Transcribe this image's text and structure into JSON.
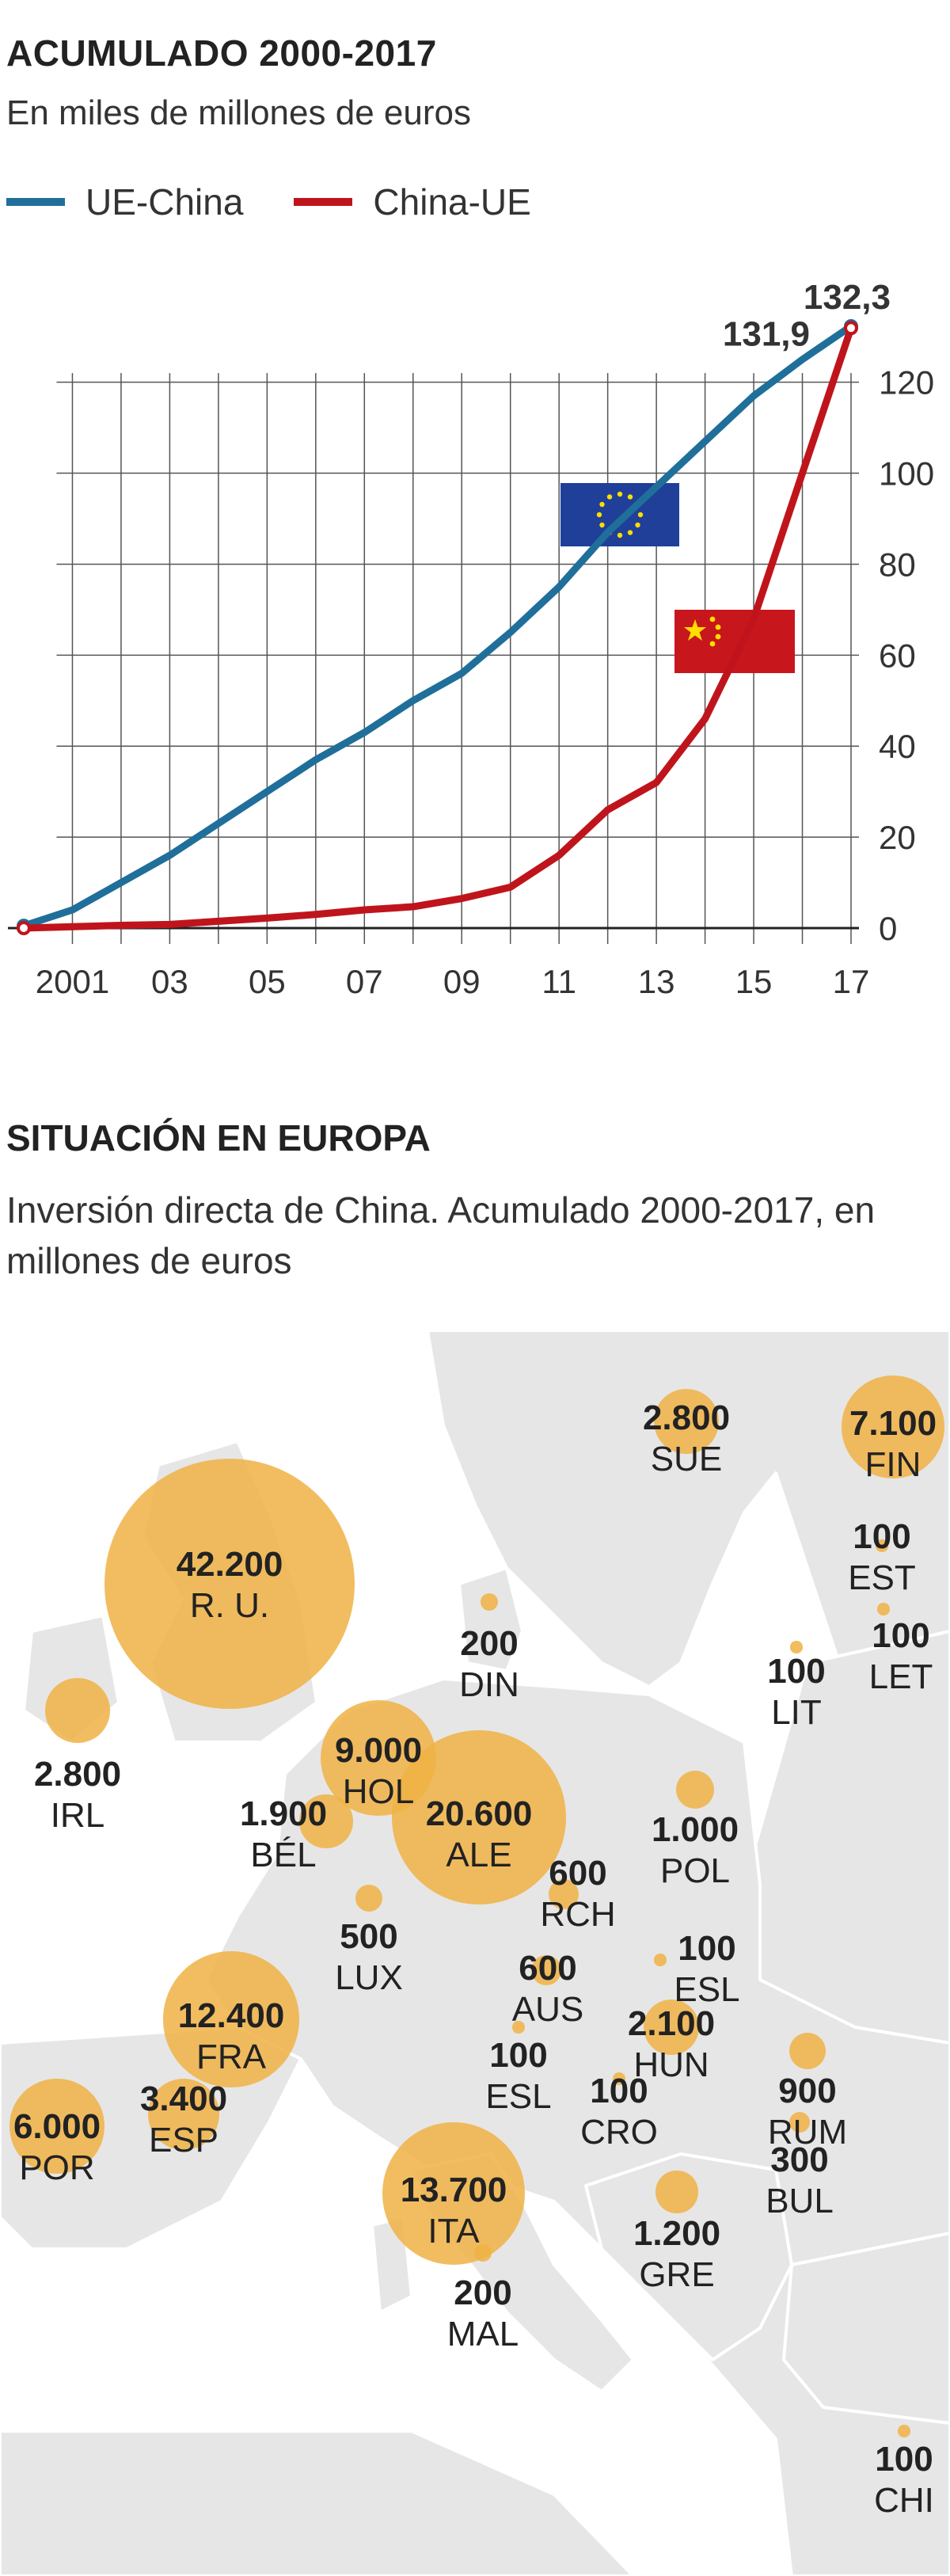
{
  "section1": {
    "title": "ACUMULADO 2000-2017",
    "subtitle": "En miles de millones de euros"
  },
  "colors": {
    "eu_china": "#1f6f9a",
    "china_eu": "#c0141d",
    "bubble": "#f0b244",
    "grid": "#444444",
    "flag_eu": "#1f3f99",
    "flag_cn": "#c8161d"
  },
  "chart_data": {
    "type": "line",
    "x": [
      2000,
      2001,
      2002,
      2003,
      2004,
      2005,
      2006,
      2007,
      2008,
      2009,
      2010,
      2011,
      2012,
      2013,
      2014,
      2015,
      2016,
      2017
    ],
    "xtick_labels": [
      "2001",
      "03",
      "05",
      "07",
      "09",
      "11",
      "13",
      "15",
      "17"
    ],
    "xtick_values": [
      2001,
      2003,
      2005,
      2007,
      2009,
      2011,
      2013,
      2015,
      2017
    ],
    "ylim": [
      0,
      132.3
    ],
    "yticks": [
      0,
      20,
      40,
      60,
      80,
      100,
      120
    ],
    "series": [
      {
        "name": "UE-China",
        "color": "#1f6f9a",
        "values": [
          0.5,
          4,
          10,
          16,
          23,
          30,
          37,
          43,
          50,
          56,
          65,
          75,
          87,
          97,
          107,
          117,
          125,
          132.3
        ]
      },
      {
        "name": "China-UE",
        "color": "#c0141d",
        "values": [
          0,
          0.3,
          0.6,
          0.8,
          1.5,
          2.2,
          3,
          4,
          4.7,
          6.5,
          9,
          16,
          26,
          32,
          46,
          68,
          100,
          131.9
        ]
      }
    ],
    "end_labels": {
      "eu_china": "132,3",
      "china_eu": "131,9"
    },
    "legend": [
      "UE-China",
      "China-UE"
    ]
  },
  "section2": {
    "title": "SITUACIÓN EN EUROPA",
    "subtitle": "Inversión directa de China. Acumulado 2000-2017, en millones de euros"
  },
  "map_data": {
    "countries": [
      {
        "id": "ru",
        "value": 42200,
        "value_label": "42.200",
        "name": "R. U."
      },
      {
        "id": "ale",
        "value": 20600,
        "value_label": "20.600",
        "name": "ALE"
      },
      {
        "id": "ita",
        "value": 13700,
        "value_label": "13.700",
        "name": "ITA"
      },
      {
        "id": "fra",
        "value": 12400,
        "value_label": "12.400",
        "name": "FRA"
      },
      {
        "id": "hol",
        "value": 9000,
        "value_label": "9.000",
        "name": "HOL"
      },
      {
        "id": "fin",
        "value": 7100,
        "value_label": "7.100",
        "name": "FIN"
      },
      {
        "id": "por",
        "value": 6000,
        "value_label": "6.000",
        "name": "POR"
      },
      {
        "id": "esp",
        "value": 3400,
        "value_label": "3.400",
        "name": "ESP"
      },
      {
        "id": "sue",
        "value": 2800,
        "value_label": "2.800",
        "name": "SUE"
      },
      {
        "id": "irl",
        "value": 2800,
        "value_label": "2.800",
        "name": "IRL"
      },
      {
        "id": "hun",
        "value": 2100,
        "value_label": "2.100",
        "name": "HUN"
      },
      {
        "id": "bel",
        "value": 1900,
        "value_label": "1.900",
        "name": "BÉL"
      },
      {
        "id": "gre",
        "value": 1200,
        "value_label": "1.200",
        "name": "GRE"
      },
      {
        "id": "pol",
        "value": 1000,
        "value_label": "1.000",
        "name": "POL"
      },
      {
        "id": "rum",
        "value": 900,
        "value_label": "900",
        "name": "RUM"
      },
      {
        "id": "rch",
        "value": 600,
        "value_label": "600",
        "name": "RCH"
      },
      {
        "id": "aus",
        "value": 600,
        "value_label": "600",
        "name": "AUS"
      },
      {
        "id": "lux",
        "value": 500,
        "value_label": "500",
        "name": "LUX"
      },
      {
        "id": "bul",
        "value": 300,
        "value_label": "300",
        "name": "BUL"
      },
      {
        "id": "din",
        "value": 200,
        "value_label": "200",
        "name": "DIN"
      },
      {
        "id": "mal",
        "value": 200,
        "value_label": "200",
        "name": "MAL"
      },
      {
        "id": "est",
        "value": 100,
        "value_label": "100",
        "name": "EST"
      },
      {
        "id": "let",
        "value": 100,
        "value_label": "100",
        "name": "LET"
      },
      {
        "id": "lit",
        "value": 100,
        "value_label": "100",
        "name": "LIT"
      },
      {
        "id": "esl_sk",
        "value": 100,
        "value_label": "100",
        "name": "ESL"
      },
      {
        "id": "esl_si",
        "value": 100,
        "value_label": "100",
        "name": "ESL"
      },
      {
        "id": "cro",
        "value": 100,
        "value_label": "100",
        "name": "CRO"
      },
      {
        "id": "chi",
        "value": 100,
        "value_label": "100",
        "name": "CHI"
      }
    ]
  }
}
